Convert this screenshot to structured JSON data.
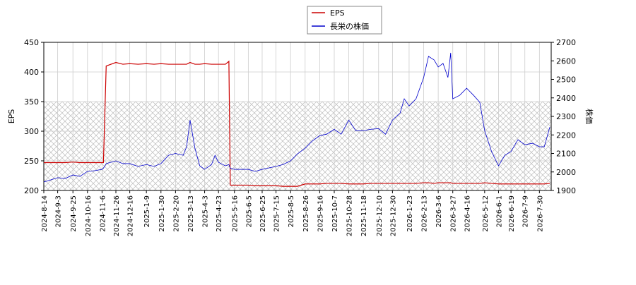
{
  "chart_data": {
    "type": "line",
    "ylabel": "EPS",
    "y2label": "株価",
    "legend": "top",
    "grid": true,
    "hatch_band": [
      200,
      350
    ],
    "xlim": [
      "2024-8-14",
      "2026-8-16"
    ],
    "xticks": [
      "2024-8-14",
      "2024-9-3",
      "2024-9-25",
      "2024-10-16",
      "2024-11-6",
      "2024-11-26",
      "2024-12-16",
      "2025-1-9",
      "2025-1-30",
      "2025-2-20",
      "2025-3-13",
      "2025-4-3",
      "2025-4-23",
      "2025-5-16",
      "2025-6-5",
      "2025-6-25",
      "2025-7-15",
      "2025-8-5",
      "2025-8-26",
      "2025-9-16",
      "2025-10-7",
      "2025-10-28",
      "2025-11-18",
      "2025-12-10",
      "2025-12-30",
      "2026-1-23",
      "2026-2-13",
      "2026-3-6",
      "2026-3-27",
      "2026-4-16",
      "2026-5-12",
      "2026-6-1",
      "2026-6-19",
      "2026-7-9",
      "2026-7-30"
    ],
    "ylim": [
      200,
      450
    ],
    "yticks": [
      200,
      250,
      300,
      350,
      400,
      450
    ],
    "y2lim": [
      1900,
      2700
    ],
    "y2ticks": [
      1900,
      2000,
      2100,
      2200,
      2300,
      2400,
      2500,
      2600,
      2700
    ],
    "x": [
      "2024-8-14",
      "2024-8-24",
      "2024-9-3",
      "2024-9-14",
      "2024-9-25",
      "2024-10-5",
      "2024-10-16",
      "2024-10-27",
      "2024-11-6",
      "2024-11-8",
      "2024-11-12",
      "2024-11-26",
      "2024-12-6",
      "2024-12-16",
      "2024-12-28",
      "2025-1-9",
      "2025-1-20",
      "2025-1-30",
      "2025-2-10",
      "2025-2-20",
      "2025-3-3",
      "2025-3-8",
      "2025-3-13",
      "2025-3-20",
      "2025-3-27",
      "2025-4-3",
      "2025-4-13",
      "2025-4-18",
      "2025-4-23",
      "2025-5-3",
      "2025-5-8",
      "2025-5-10",
      "2025-5-16",
      "2025-5-26",
      "2025-6-5",
      "2025-6-15",
      "2025-6-25",
      "2025-7-5",
      "2025-7-15",
      "2025-7-25",
      "2025-8-5",
      "2025-8-15",
      "2025-8-26",
      "2025-9-5",
      "2025-9-16",
      "2025-9-26",
      "2025-10-7",
      "2025-10-17",
      "2025-10-28",
      "2025-11-7",
      "2025-11-18",
      "2025-11-28",
      "2025-12-10",
      "2025-12-20",
      "2025-12-30",
      "2026-1-10",
      "2026-1-16",
      "2026-1-23",
      "2026-2-2",
      "2026-2-13",
      "2026-2-20",
      "2026-2-28",
      "2026-3-6",
      "2026-3-13",
      "2026-3-20",
      "2026-3-24",
      "2026-3-27",
      "2026-4-6",
      "2026-4-16",
      "2026-4-26",
      "2026-5-5",
      "2026-5-12",
      "2026-5-22",
      "2026-6-1",
      "2026-6-10",
      "2026-6-19",
      "2026-6-29",
      "2026-7-9",
      "2026-7-20",
      "2026-7-30",
      "2026-8-6",
      "2026-8-14"
    ],
    "series": [
      {
        "name": "EPS",
        "color": "#cc0000",
        "axis": "y",
        "values": [
          247,
          247,
          247,
          247,
          248,
          247,
          247,
          247,
          247,
          247,
          410,
          416,
          413,
          414,
          413,
          414,
          413,
          414,
          413,
          413,
          413,
          413,
          416,
          413,
          413,
          414,
          413,
          413,
          413,
          413,
          418,
          209,
          209,
          209,
          209,
          208,
          208,
          208,
          208,
          207,
          207,
          207,
          211,
          211,
          211,
          212,
          212,
          212,
          211,
          211,
          211,
          212,
          212,
          212,
          212,
          212,
          212,
          212,
          212,
          213,
          213,
          212,
          213,
          213,
          213,
          213,
          212,
          212,
          212,
          212,
          212,
          213,
          212,
          211,
          211,
          211,
          211,
          211,
          211,
          211,
          211,
          212
        ]
      },
      {
        "name": "長栄の株価",
        "color": "#0000cc",
        "axis": "y2",
        "values": [
          1946,
          1957,
          1969,
          1965,
          1984,
          1976,
          2003,
          2007,
          2014,
          2020,
          2045,
          2060,
          2045,
          2045,
          2030,
          2040,
          2030,
          2045,
          2090,
          2100,
          2090,
          2136,
          2280,
          2128,
          2033,
          2014,
          2040,
          2090,
          2052,
          2033,
          2040,
          2020,
          2014,
          2014,
          2014,
          2003,
          2014,
          2022,
          2030,
          2040,
          2060,
          2098,
          2128,
          2166,
          2196,
          2204,
          2230,
          2204,
          2280,
          2223,
          2223,
          2230,
          2234,
          2204,
          2280,
          2318,
          2395,
          2356,
          2395,
          2510,
          2624,
          2605,
          2567,
          2586,
          2510,
          2643,
          2395,
          2414,
          2452,
          2414,
          2376,
          2223,
          2110,
          2033,
          2090,
          2110,
          2174,
          2147,
          2155,
          2136,
          2136,
          2242
        ]
      }
    ]
  }
}
